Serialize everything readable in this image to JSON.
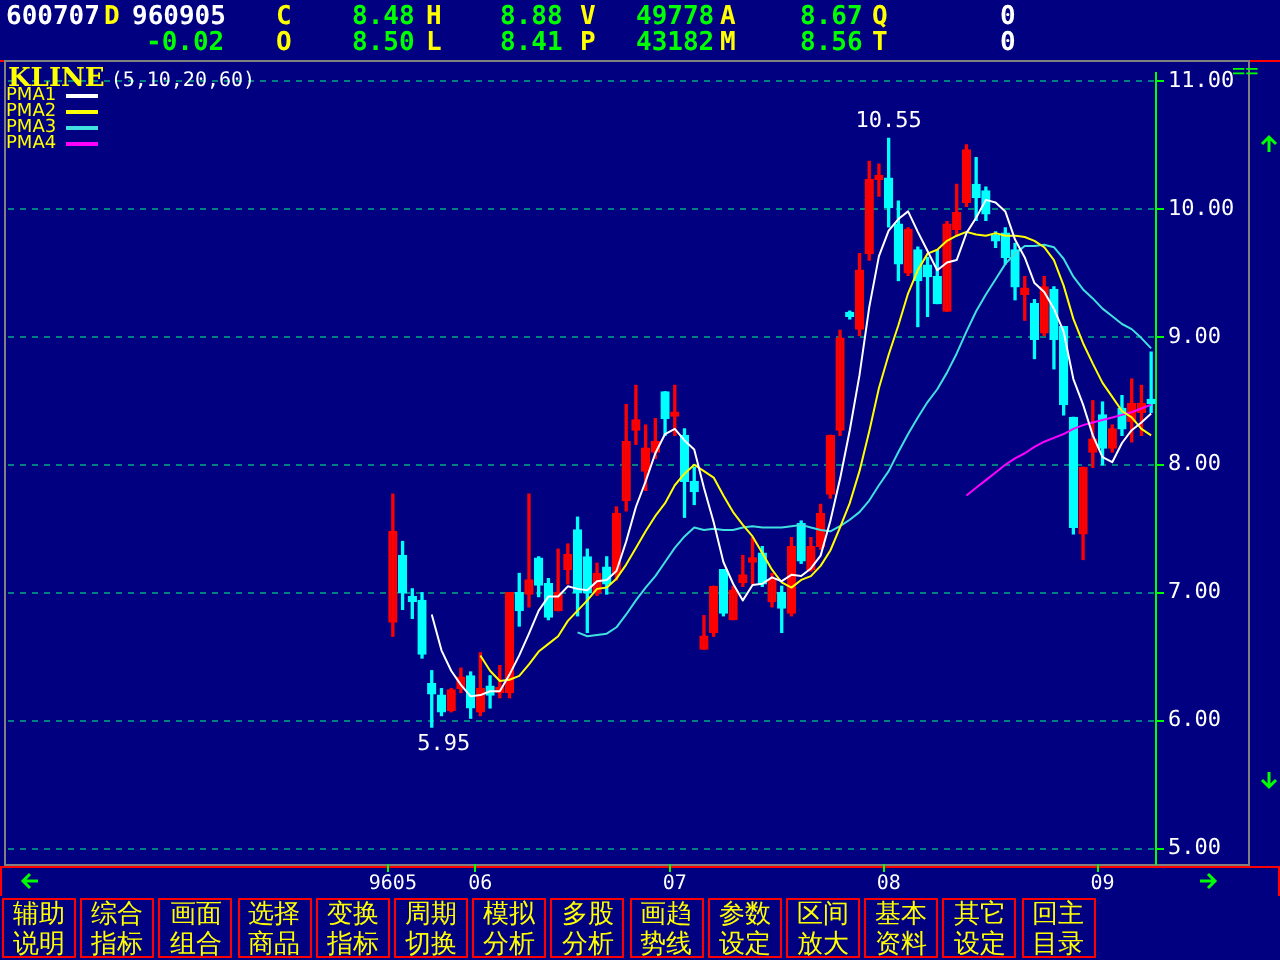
{
  "chart_data": {
    "type": "candlestick",
    "title": "KLINE",
    "subtitle": "(5,10,20,60)",
    "categories": [
      "9605",
      null,
      null,
      null,
      null,
      null,
      null,
      null,
      null,
      "06",
      null,
      null,
      null,
      null,
      null,
      null,
      null,
      null,
      null,
      null,
      null,
      null,
      null,
      null,
      null,
      null,
      null,
      null,
      null,
      "07",
      null,
      null,
      null,
      null,
      null,
      null,
      null,
      null,
      null,
      null,
      null,
      null,
      null,
      null,
      null,
      null,
      null,
      null,
      null,
      null,
      null,
      "08",
      null,
      null,
      null,
      null,
      null,
      null,
      null,
      null,
      null,
      null,
      null,
      null,
      null,
      null,
      null,
      null,
      null,
      null,
      null,
      null,
      null,
      "09",
      null,
      null,
      null,
      null,
      null
    ],
    "ohlc": [
      [
        6.77,
        7.77,
        6.66,
        7.48
      ],
      [
        7.29,
        7.4,
        6.87,
        7.0
      ],
      [
        6.97,
        7.03,
        6.8,
        6.93
      ],
      [
        6.94,
        7.0,
        6.49,
        6.52
      ],
      [
        6.29,
        6.39,
        5.95,
        6.21
      ],
      [
        6.2,
        6.25,
        6.04,
        6.07
      ],
      [
        6.08,
        6.25,
        6.07,
        6.24
      ],
      [
        6.25,
        6.41,
        6.22,
        6.34
      ],
      [
        6.35,
        6.38,
        6.02,
        6.1
      ],
      [
        6.07,
        6.53,
        6.04,
        6.25
      ],
      [
        6.27,
        6.35,
        6.1,
        6.2
      ],
      [
        6.22,
        6.43,
        6.18,
        6.26
      ],
      [
        6.22,
        7.0,
        6.18,
        7.0
      ],
      [
        7.0,
        7.15,
        6.74,
        6.86
      ],
      [
        6.99,
        7.77,
        6.89,
        7.1
      ],
      [
        7.27,
        7.28,
        6.97,
        7.06
      ],
      [
        7.07,
        7.11,
        6.79,
        6.81
      ],
      [
        6.86,
        7.34,
        6.86,
        7.0
      ],
      [
        7.18,
        7.38,
        7.07,
        7.3
      ],
      [
        7.49,
        7.59,
        6.82,
        7.0
      ],
      [
        7.28,
        7.34,
        6.69,
        7.0
      ],
      [
        7.0,
        7.23,
        6.98,
        7.15
      ],
      [
        7.2,
        7.28,
        6.99,
        7.07
      ],
      [
        7.15,
        7.67,
        7.1,
        7.62
      ],
      [
        7.72,
        8.47,
        7.64,
        8.18
      ],
      [
        8.27,
        8.62,
        8.16,
        8.35
      ],
      [
        7.95,
        8.31,
        7.8,
        8.13
      ],
      [
        8.1,
        8.36,
        8.05,
        8.18
      ],
      [
        8.57,
        8.57,
        8.23,
        8.36
      ],
      [
        8.38,
        8.62,
        8.23,
        8.4
      ],
      [
        8.23,
        8.28,
        7.59,
        7.87
      ],
      [
        7.87,
        7.98,
        7.69,
        7.79
      ],
      [
        6.56,
        6.82,
        6.56,
        6.66
      ],
      [
        6.69,
        7.05,
        6.66,
        7.05
      ],
      [
        7.18,
        7.18,
        6.82,
        6.84
      ],
      [
        6.79,
        7.05,
        6.79,
        7.02
      ],
      [
        7.08,
        7.29,
        7.05,
        7.14
      ],
      [
        7.24,
        7.43,
        7.07,
        7.27
      ],
      [
        7.31,
        7.36,
        7.05,
        7.07
      ],
      [
        6.93,
        7.15,
        6.89,
        7.1
      ],
      [
        7.0,
        7.05,
        6.69,
        6.88
      ],
      [
        6.84,
        7.43,
        6.82,
        7.36
      ],
      [
        7.54,
        7.56,
        7.23,
        7.25
      ],
      [
        7.18,
        7.43,
        7.17,
        7.36
      ],
      [
        7.36,
        7.69,
        7.34,
        7.62
      ],
      [
        7.77,
        8.23,
        7.74,
        8.23
      ],
      [
        8.27,
        9.05,
        8.23,
        8.99
      ],
      [
        9.18,
        9.2,
        9.14,
        9.16
      ],
      [
        9.06,
        9.65,
        9.01,
        9.52
      ],
      [
        9.65,
        10.37,
        9.6,
        10.23
      ],
      [
        10.23,
        10.35,
        10.1,
        10.25
      ],
      [
        10.24,
        10.55,
        9.86,
        10.01
      ],
      [
        9.88,
        10.06,
        9.44,
        9.57
      ],
      [
        9.5,
        9.85,
        9.48,
        9.84
      ],
      [
        9.68,
        9.7,
        9.08,
        9.44
      ],
      [
        9.56,
        9.62,
        9.16,
        9.47
      ],
      [
        9.47,
        9.68,
        9.26,
        9.26
      ],
      [
        9.2,
        9.9,
        9.2,
        9.88
      ],
      [
        9.84,
        10.19,
        9.8,
        9.97
      ],
      [
        10.05,
        10.5,
        10.02,
        10.46
      ],
      [
        10.19,
        10.4,
        9.91,
        10.09
      ],
      [
        10.14,
        10.17,
        9.91,
        9.96
      ],
      [
        9.79,
        9.82,
        9.7,
        9.75
      ],
      [
        9.81,
        9.85,
        9.57,
        9.62
      ],
      [
        9.68,
        9.73,
        9.29,
        9.39
      ],
      [
        9.33,
        9.47,
        9.13,
        9.38
      ],
      [
        9.26,
        9.29,
        8.83,
        8.98
      ],
      [
        9.03,
        9.47,
        9.01,
        9.39
      ],
      [
        9.37,
        9.39,
        8.75,
        8.98
      ],
      [
        9.08,
        9.08,
        8.39,
        8.47
      ],
      [
        8.37,
        8.37,
        7.46,
        7.51
      ],
      [
        7.46,
        7.98,
        7.26,
        7.98
      ],
      [
        8.1,
        8.5,
        7.98,
        8.2
      ],
      [
        8.39,
        8.49,
        8.0,
        8.13
      ],
      [
        8.13,
        8.31,
        8.1,
        8.28
      ],
      [
        8.44,
        8.54,
        8.23,
        8.28
      ],
      [
        8.34,
        8.67,
        8.18,
        8.48
      ],
      [
        8.41,
        8.62,
        8.23,
        8.48
      ],
      [
        8.5,
        8.88,
        8.41,
        8.48
      ]
    ],
    "colors": [
      "#ff0000",
      "#00ffff",
      "#00ffff",
      "#00ffff",
      "#00ffff",
      "#00ffff",
      "#ff0000",
      "#ff0000",
      "#00ffff",
      "#ff0000",
      "#00ffff",
      "#ff0000",
      "#ff0000",
      "#00ffff",
      "#ff0000",
      "#00ffff",
      "#00ffff",
      "#ff0000",
      "#ff0000",
      "#00ffff",
      "#00ffff",
      "#ff0000",
      "#00ffff",
      "#ff0000",
      "#ff0000",
      "#ff0000",
      "#ff0000",
      "#ff0000",
      "#00ffff",
      "#ff0000",
      "#00ffff",
      "#00ffff",
      "#ff0000",
      "#ff0000",
      "#00ffff",
      "#ff0000",
      "#ff0000",
      "#ff0000",
      "#00ffff",
      "#ff0000",
      "#00ffff",
      "#ff0000",
      "#00ffff",
      "#ff0000",
      "#ff0000",
      "#ff0000",
      "#ff0000",
      "#00ffff",
      "#ff0000",
      "#ff0000",
      "#ff0000",
      "#00ffff",
      "#00ffff",
      "#ff0000",
      "#00ffff",
      "#00ffff",
      "#00ffff",
      "#ff0000",
      "#ff0000",
      "#ff0000",
      "#00ffff",
      "#00ffff",
      "#00ffff",
      "#00ffff",
      "#00ffff",
      "#ff0000",
      "#00ffff",
      "#ff0000",
      "#00ffff",
      "#00ffff",
      "#00ffff",
      "#ff0000",
      "#ff0000",
      "#00ffff",
      "#ff0000",
      "#00ffff",
      "#ff0000",
      "#ff0000",
      "#00ffff"
    ],
    "series": [
      {
        "name": "PMA1",
        "type": "line",
        "color": "#ffffff",
        "values": [
          null,
          null,
          null,
          null,
          6.83,
          6.55,
          6.39,
          6.28,
          6.19,
          6.2,
          6.23,
          6.23,
          6.36,
          6.51,
          6.68,
          6.86,
          6.97,
          6.97,
          7.05,
          7.03,
          7.02,
          7.09,
          7.1,
          7.17,
          7.4,
          7.67,
          7.87,
          8.09,
          8.24,
          8.28,
          8.19,
          8.12,
          7.82,
          7.55,
          7.24,
          7.07,
          6.94,
          7.06,
          7.07,
          7.12,
          7.09,
          7.14,
          7.13,
          7.19,
          7.29,
          7.56,
          7.89,
          8.27,
          8.7,
          9.23,
          9.63,
          9.83,
          9.92,
          9.98,
          9.82,
          9.67,
          9.52,
          9.58,
          9.6,
          9.81,
          9.93,
          10.07,
          10.05,
          9.98,
          9.76,
          9.62,
          9.42,
          9.35,
          9.22,
          9.04,
          8.67,
          8.47,
          8.23,
          8.06,
          8.02,
          8.17,
          8.27,
          8.33,
          8.4
        ]
      },
      {
        "name": "PMA2",
        "type": "line",
        "color": "#ffff00",
        "values": [
          null,
          null,
          null,
          null,
          null,
          null,
          null,
          null,
          null,
          6.51,
          6.39,
          6.31,
          6.32,
          6.35,
          6.44,
          6.54,
          6.6,
          6.66,
          6.78,
          6.86,
          6.94,
          7.03,
          7.04,
          7.11,
          7.22,
          7.35,
          7.48,
          7.6,
          7.7,
          7.84,
          7.93,
          8.0,
          7.95,
          7.9,
          7.76,
          7.63,
          7.53,
          7.44,
          7.31,
          7.18,
          7.08,
          7.04,
          7.1,
          7.13,
          7.21,
          7.33,
          7.51,
          7.7,
          7.95,
          8.26,
          8.6,
          8.86,
          9.09,
          9.34,
          9.52,
          9.65,
          9.68,
          9.75,
          9.79,
          9.82,
          9.8,
          9.79,
          9.81,
          9.79,
          9.79,
          9.78,
          9.75,
          9.7,
          9.6,
          9.4,
          9.14,
          8.95,
          8.79,
          8.64,
          8.53,
          8.42,
          8.37,
          8.28,
          8.23
        ]
      },
      {
        "name": "PMA3",
        "type": "line",
        "color": "#40e0e0",
        "values": [
          null,
          null,
          null,
          null,
          null,
          null,
          null,
          null,
          null,
          null,
          null,
          null,
          null,
          null,
          null,
          null,
          null,
          null,
          null,
          6.69,
          6.66,
          6.67,
          6.68,
          6.73,
          6.83,
          6.94,
          7.04,
          7.13,
          7.24,
          7.35,
          7.44,
          7.51,
          7.49,
          7.5,
          7.49,
          7.49,
          7.51,
          7.52,
          7.51,
          7.51,
          7.51,
          7.52,
          7.53,
          7.51,
          7.49,
          7.48,
          7.52,
          7.57,
          7.63,
          7.72,
          7.84,
          7.95,
          8.1,
          8.24,
          8.37,
          8.49,
          8.59,
          8.72,
          8.87,
          9.04,
          9.2,
          9.33,
          9.45,
          9.57,
          9.65,
          9.71,
          9.71,
          9.72,
          9.7,
          9.61,
          9.47,
          9.37,
          9.3,
          9.22,
          9.16,
          9.1,
          9.06,
          8.99,
          8.91
        ]
      },
      {
        "name": "PMA4",
        "type": "line",
        "color": "#ff00ff",
        "values": [
          null,
          null,
          null,
          null,
          null,
          null,
          null,
          null,
          null,
          null,
          null,
          null,
          null,
          null,
          null,
          null,
          null,
          null,
          null,
          null,
          null,
          null,
          null,
          null,
          null,
          null,
          null,
          null,
          null,
          null,
          null,
          null,
          null,
          null,
          null,
          null,
          null,
          null,
          null,
          null,
          null,
          null,
          null,
          null,
          null,
          null,
          null,
          null,
          null,
          null,
          null,
          null,
          null,
          null,
          null,
          null,
          null,
          null,
          null,
          7.76,
          7.82,
          7.88,
          7.94,
          8.0,
          8.05,
          8.09,
          8.14,
          8.18,
          8.21,
          8.24,
          8.28,
          8.31,
          8.33,
          8.35,
          8.37,
          8.39,
          8.41,
          8.44,
          8.47
        ]
      }
    ],
    "ylim": [
      4.88,
      11.06
    ],
    "yticks": [
      {
        "value": 5,
        "label": "5.00"
      },
      {
        "value": 6,
        "label": "6.00"
      },
      {
        "value": 7,
        "label": "7.00"
      },
      {
        "value": 8,
        "label": "8.00"
      },
      {
        "value": 9,
        "label": "9.00"
      },
      {
        "value": 10,
        "label": "10.00"
      },
      {
        "value": 11,
        "label": "11.00"
      }
    ],
    "grid": "y",
    "legend": "top left",
    "marker": "none",
    "annotations": [
      "600707",
      "D",
      "960905",
      "C",
      "8.48",
      "H",
      "8.88",
      "V",
      "49778",
      "A",
      "8.67",
      "Q",
      "0",
      "-0.02",
      "O",
      "8.50",
      "L",
      "8.41",
      "P",
      "43182",
      "M",
      "8.56",
      "T",
      "0",
      "辅助说明",
      "综合指标",
      "画面组合",
      "选择商品",
      "变换指标",
      "周期切换",
      "模拟分析",
      "多股分析",
      "画趋势线",
      "参数设定",
      "区间放大",
      "基本资料",
      "其它设定",
      "回主目录",
      "==",
      "10.55",
      "5.95"
    ]
  }
}
